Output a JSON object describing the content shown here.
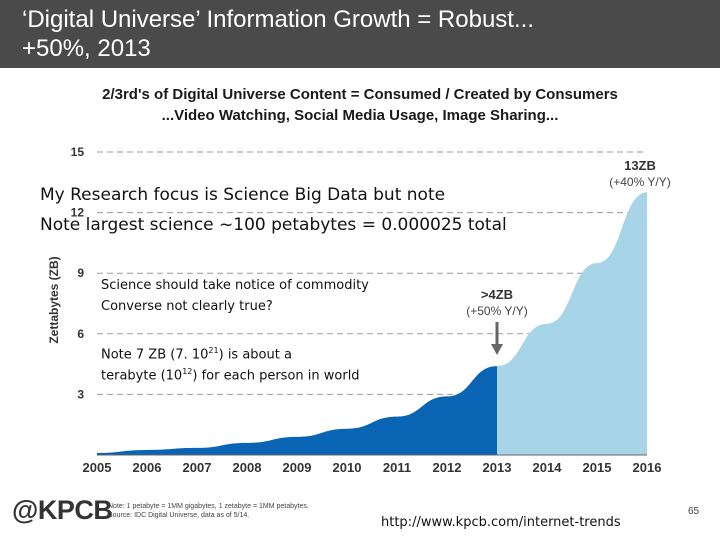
{
  "header": {
    "line1": "‘Digital Universe’ Information Growth = Robust...",
    "line2": "+50%, 2013"
  },
  "chart_data": {
    "type": "area",
    "title": "2/3rd's of Digital Universe Content = Consumed / Created by Consumers",
    "subtitle": "...Video Watching, Social Media Usage, Image Sharing...",
    "ylabel": "Zettabytes (ZB)",
    "xlabel": "",
    "ylim": [
      0,
      15
    ],
    "xlim": [
      2005,
      2016
    ],
    "y_ticks": [
      "3",
      "6",
      "9",
      "12",
      "15"
    ],
    "x_ticks": [
      "2005",
      "2006",
      "2007",
      "2008",
      "2009",
      "2010",
      "2011",
      "2012",
      "2013",
      "2014",
      "2015",
      "2016"
    ],
    "grid": "dashed horizontal lines",
    "series": [
      {
        "segment": "actual",
        "color": "#0a64b4",
        "x": [
          2005,
          2006,
          2007,
          2008,
          2009,
          2010,
          2011,
          2012,
          2013
        ],
        "values": [
          0.1,
          0.25,
          0.35,
          0.6,
          0.9,
          1.3,
          1.9,
          2.9,
          4.4
        ]
      },
      {
        "segment": "projected",
        "color": "#a8d4e8",
        "x": [
          2013,
          2014,
          2015,
          2016
        ],
        "values": [
          4.4,
          6.5,
          9.5,
          13.0
        ]
      }
    ],
    "annotations": [
      {
        "label": ">4ZB",
        "sublabel": "(+50% Y/Y)",
        "x": 2013,
        "y": 4.4,
        "arrow": true
      },
      {
        "label": "13ZB",
        "sublabel": "(+40% Y/Y)",
        "x": 2016,
        "y": 13.0
      }
    ]
  },
  "overlay": {
    "main_line1": "My Research  focus is Science Big Data but note",
    "main_line2": "Note largest science ~100 petabytes = 0.000025 total",
    "small_para1_line1": "Science should take notice of commodity",
    "small_para1_line2": "Converse not clearly true?",
    "small_para2_line1_a": "Note 7 ZB (7. 10",
    "small_para2_line1_sup": "21",
    "small_para2_line1_b": ") is about a",
    "small_para2_line2_a": "terabyte (10",
    "small_para2_line2_sup": "12",
    "small_para2_line2_b": ") for each person in world"
  },
  "footer": {
    "logo": "@KPCB",
    "note1": "Note: 1 petabyte = 1MM gigabytes, 1 zetabyte = 1MM petabytes.",
    "note2": "Source: IDC Digital Universe, data as of 5/14.",
    "url": "http://www.kpcb.com/internet-trends",
    "page_number": "65"
  }
}
